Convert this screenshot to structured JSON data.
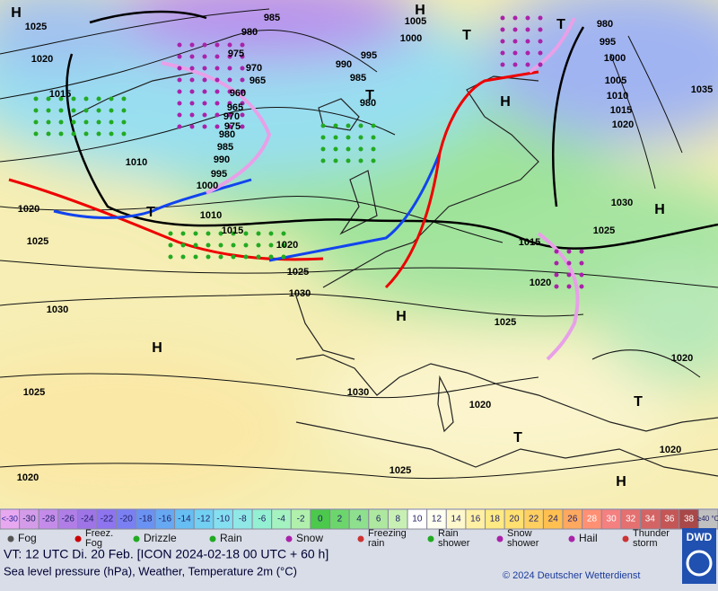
{
  "map": {
    "isobar_labels": [
      "985",
      "980",
      "975",
      "970",
      "965",
      "960",
      "965",
      "970",
      "975",
      "980",
      "985",
      "990",
      "995",
      "1000",
      "1005",
      "1000",
      "995",
      "990",
      "985",
      "980",
      "1025",
      "1020",
      "1015",
      "1010",
      "1020",
      "1025",
      "1010",
      "1015",
      "1020",
      "1025",
      "1030",
      "1030",
      "1025",
      "1020",
      "980",
      "995",
      "1000",
      "1005",
      "1010",
      "1015",
      "1020",
      "1035",
      "1030",
      "1025",
      "1015",
      "1020",
      "1025",
      "1020",
      "1020",
      "1030",
      "1025",
      "1020"
    ],
    "centers": [
      "H",
      "H",
      "T",
      "T",
      "H",
      "T",
      "T",
      "H",
      "H",
      "H",
      "T",
      "T",
      "H"
    ]
  },
  "scale": {
    "below": "<-30",
    "values": [
      -30,
      -28,
      -26,
      -24,
      -22,
      -20,
      -18,
      -16,
      -14,
      -12,
      -10,
      -8,
      -6,
      -4,
      -2,
      0,
      2,
      4,
      6,
      8,
      10,
      12,
      14,
      16,
      18,
      20,
      22,
      24,
      26,
      28,
      30,
      32,
      34,
      36,
      38
    ],
    "colors": [
      "#d49ce8",
      "#c48ce8",
      "#b07ee6",
      "#9e74e6",
      "#8e74ee",
      "#7a80f2",
      "#6a92f2",
      "#66a8f2",
      "#66bef2",
      "#72d0f2",
      "#84dff0",
      "#90e8e6",
      "#94f0d2",
      "#a4f2c0",
      "#b0f0ac",
      "#4cc84c",
      "#6cd66c",
      "#8ee08e",
      "#aee8a0",
      "#c8f0b4",
      "#ffffff",
      "#fffff0",
      "#fff8cc",
      "#fff0a4",
      "#ffea84",
      "#ffe070",
      "#ffd060",
      "#ffc050",
      "#ffa860",
      "#ff9074",
      "#f48080",
      "#e47070",
      "#d46464",
      "#c45656",
      "#a84848"
    ],
    "above": "≥40 °C"
  },
  "legend": [
    "Fog",
    "Freez. Fog",
    "Drizzle",
    "Rain",
    "Snow",
    "Freezing rain",
    "Rain shower",
    "Snow shower",
    "Hail",
    "Thunder storm"
  ],
  "footer": {
    "valid": "VT: 12 UTC Di.  20 Feb. [ICON 2024-02-18  00 UTC + 60 h]",
    "subtitle": "Sea level pressure (hPa), Weather, Temperature 2m (°C)",
    "copyright": "© 2024 Deutscher Wetterdienst",
    "logo": "DWD"
  }
}
